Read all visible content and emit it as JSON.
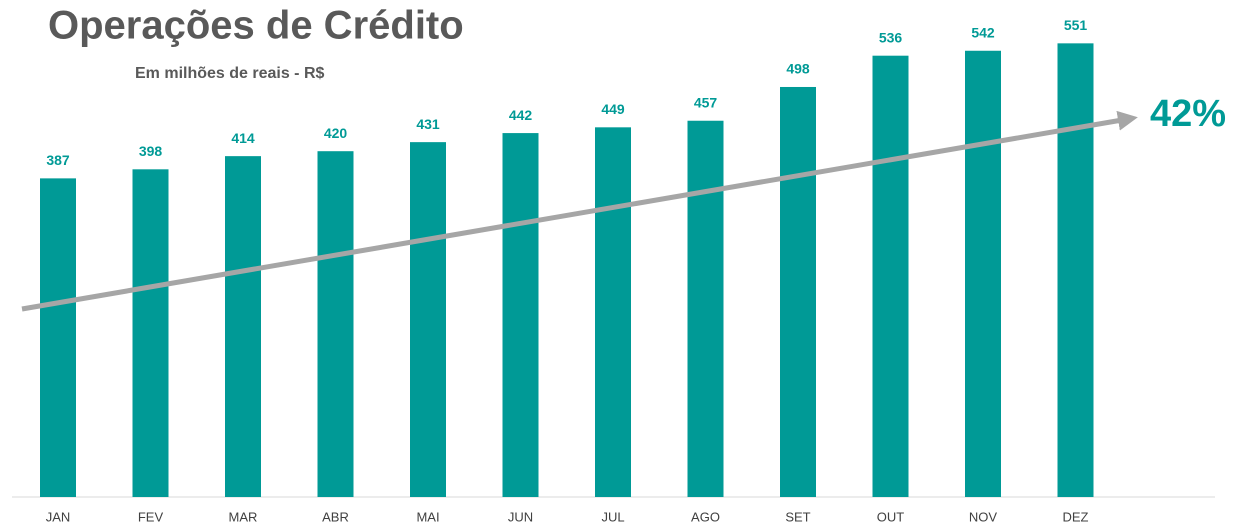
{
  "chart_data": {
    "type": "bar",
    "title": "Operações de Crédito",
    "subtitle": "Em milhões de reais - R$",
    "categories": [
      "JAN",
      "FEV",
      "MAR",
      "ABR",
      "MAI",
      "JUN",
      "JUL",
      "AGO",
      "SET",
      "OUT",
      "NOV",
      "DEZ"
    ],
    "values": [
      387,
      398,
      414,
      420,
      431,
      442,
      449,
      457,
      498,
      536,
      542,
      551
    ],
    "color": "#009a96",
    "ylim": [
      0,
      600
    ],
    "annotation": "42%"
  }
}
